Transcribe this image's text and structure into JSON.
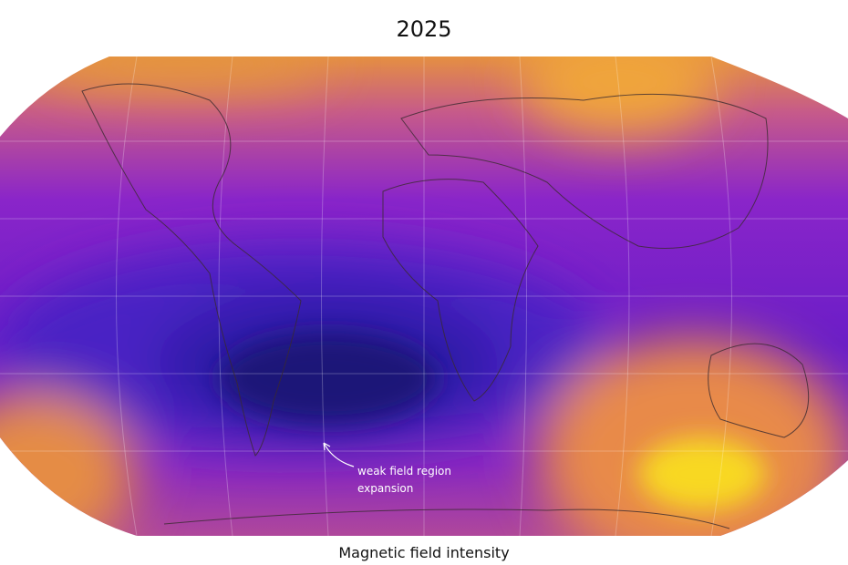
{
  "title": "2025",
  "annotation": [
    "weak field region",
    "expansion"
  ],
  "caption": "Magnetic field intensity"
}
